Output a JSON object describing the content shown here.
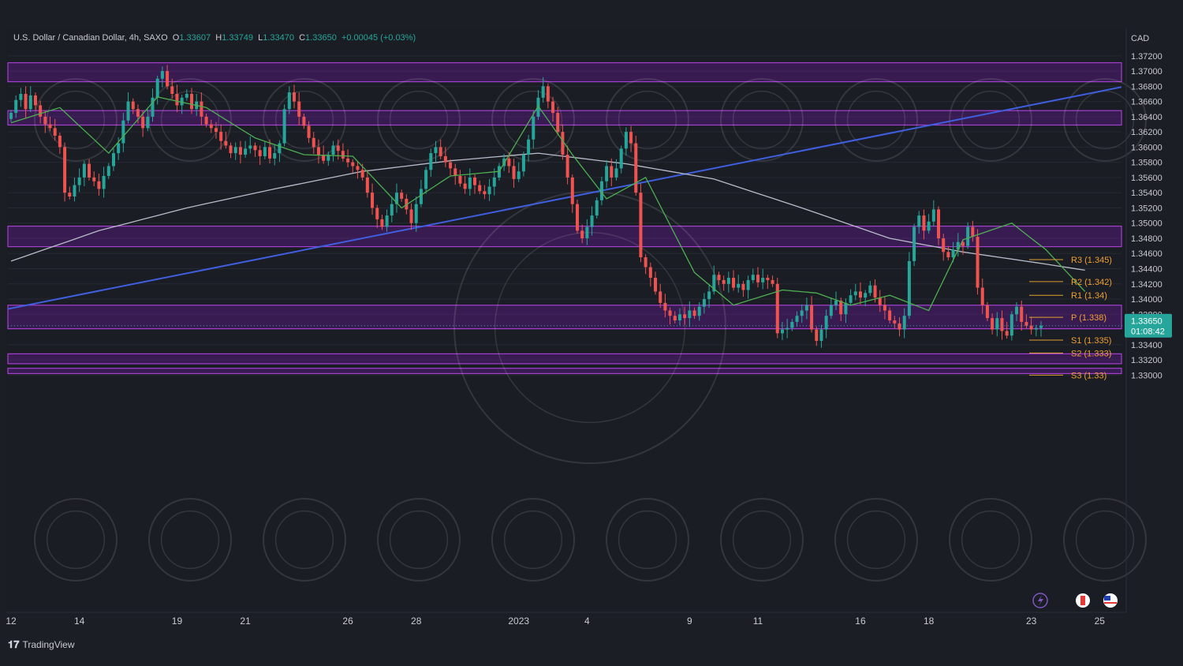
{
  "header": {
    "symbol": "U.S. Dollar / Canadian Dollar, 4h, SAXO",
    "o_label": "O",
    "o_value": "1.33607",
    "h_label": "H",
    "h_value": "1.33749",
    "l_label": "L",
    "l_value": "1.33470",
    "c_label": "C",
    "c_value": "1.33650",
    "change": "+0.00045 (+0.03%)"
  },
  "currency_label": "CAD",
  "price_badge": {
    "price": "1.33650",
    "countdown": "01:08:42"
  },
  "footer": {
    "brand": "TradingView"
  },
  "colors": {
    "background": "#1b1d25",
    "up": "#26a69a",
    "down": "#ef5350",
    "zone": "#6a1b9a",
    "trendline": "#3f5fe0",
    "pivot_line": "#e0a030",
    "pivot_text": "#f0a030",
    "ma_fast": "#4caf50",
    "ma_slow": "#b8bcc8"
  },
  "chart_data": {
    "type": "candlestick",
    "x_ticks": [
      "12",
      "14",
      "19",
      "21",
      "26",
      "28",
      "2023",
      "4",
      "9",
      "11",
      "16",
      "18",
      "23",
      "25"
    ],
    "y_ticks": [
      "1.37200",
      "1.37000",
      "1.36800",
      "1.36600",
      "1.36400",
      "1.36200",
      "1.36000",
      "1.35800",
      "1.35600",
      "1.35400",
      "1.35200",
      "1.35000",
      "1.34800",
      "1.34600",
      "1.34400",
      "1.34200",
      "1.34000",
      "1.33800",
      "1.33400",
      "1.33200",
      "1.33000"
    ],
    "ylim": [
      1.2992,
      1.3752
    ],
    "zones": [
      {
        "from": 1.3686,
        "to": 1.3711
      },
      {
        "from": 1.3629,
        "to": 1.3648
      },
      {
        "from": 1.3469,
        "to": 1.3496
      },
      {
        "from": 1.3361,
        "to": 1.3392
      },
      {
        "from": 1.3315,
        "to": 1.3328
      },
      {
        "from": 1.3302,
        "to": 1.3309
      }
    ],
    "pivots": [
      {
        "label": "R3 (1.345)",
        "value": 1.3452
      },
      {
        "label": "R2 (1.342)",
        "value": 1.3423
      },
      {
        "label": "R1 (1.34)",
        "value": 1.3405
      },
      {
        "label": "P (1.338)",
        "value": 1.3376
      },
      {
        "label": "S1 (1.335)",
        "value": 1.3346
      },
      {
        "label": "S2 (1.333)",
        "value": 1.3329
      },
      {
        "label": "S3 (1.33)",
        "value": 1.33
      }
    ],
    "trendline": {
      "from": 1.3387,
      "to": 1.3679
    },
    "last_price": 1.3365,
    "closes": [
      1.3645,
      1.3662,
      1.367,
      1.365,
      1.3668,
      1.3655,
      1.364,
      1.363,
      1.3625,
      1.3615,
      1.36,
      1.354,
      1.3535,
      1.355,
      1.356,
      1.3578,
      1.356,
      1.3555,
      1.3545,
      1.3562,
      1.3575,
      1.3592,
      1.3605,
      1.3635,
      1.366,
      1.365,
      1.364,
      1.3625,
      1.364,
      1.3665,
      1.369,
      1.37,
      1.368,
      1.367,
      1.3655,
      1.3665,
      1.367,
      1.365,
      1.366,
      1.364,
      1.363,
      1.3625,
      1.362,
      1.3608,
      1.3602,
      1.3592,
      1.36,
      1.359,
      1.3598,
      1.3602,
      1.3596,
      1.3588,
      1.36,
      1.3585,
      1.3592,
      1.3605,
      1.365,
      1.3672,
      1.366,
      1.364,
      1.3628,
      1.3612,
      1.36,
      1.359,
      1.3582,
      1.359,
      1.3602,
      1.3595,
      1.3585,
      1.358,
      1.3575,
      1.357,
      1.356,
      1.354,
      1.352,
      1.3505,
      1.3495,
      1.351,
      1.3525,
      1.354,
      1.3532,
      1.3518,
      1.35,
      1.3525,
      1.3545,
      1.357,
      1.3592,
      1.36,
      1.3588,
      1.358,
      1.3572,
      1.3562,
      1.3552,
      1.3545,
      1.356,
      1.355,
      1.3542,
      1.3538,
      1.3548,
      1.356,
      1.3575,
      1.3585,
      1.3575,
      1.3558,
      1.3568,
      1.359,
      1.361,
      1.364,
      1.3665,
      1.368,
      1.366,
      1.3645,
      1.362,
      1.359,
      1.356,
      1.3525,
      1.349,
      1.348,
      1.3495,
      1.351,
      1.353,
      1.3555,
      1.3575,
      1.356,
      1.3572,
      1.3598,
      1.362,
      1.3605,
      1.354,
      1.3455,
      1.3442,
      1.3428,
      1.341,
      1.3395,
      1.3385,
      1.3378,
      1.3372,
      1.338,
      1.3375,
      1.3385,
      1.3378,
      1.339,
      1.34,
      1.341,
      1.3432,
      1.3425,
      1.342,
      1.3428,
      1.3415,
      1.342,
      1.3412,
      1.3425,
      1.3432,
      1.3422,
      1.3428,
      1.3425,
      1.342,
      1.3355,
      1.336,
      1.3362,
      1.337,
      1.3378,
      1.3385,
      1.3392,
      1.336,
      1.3345,
      1.336,
      1.3378,
      1.3392,
      1.3398,
      1.338,
      1.3395,
      1.3405,
      1.341,
      1.3402,
      1.3408,
      1.3418,
      1.3402,
      1.3392,
      1.3385,
      1.3372,
      1.3368,
      1.336,
      1.3378,
      1.345,
      1.3495,
      1.351,
      1.349,
      1.3502,
      1.3518,
      1.348,
      1.3462,
      1.3455,
      1.3465,
      1.3475,
      1.347,
      1.3495,
      1.3482,
      1.3415,
      1.3392,
      1.3375,
      1.336,
      1.3375,
      1.3358,
      1.3352,
      1.338,
      1.339,
      1.337,
      1.3365,
      1.336,
      1.3362,
      1.3365
    ],
    "ma_fast": [
      [
        0,
        1.3632
      ],
      [
        10,
        1.3652
      ],
      [
        20,
        1.3592
      ],
      [
        30,
        1.3666
      ],
      [
        40,
        1.3652
      ],
      [
        50,
        1.3612
      ],
      [
        60,
        1.359
      ],
      [
        70,
        1.3588
      ],
      [
        80,
        1.352
      ],
      [
        90,
        1.3562
      ],
      [
        100,
        1.3568
      ],
      [
        108,
        1.3654
      ],
      [
        115,
        1.359
      ],
      [
        122,
        1.3532
      ],
      [
        130,
        1.356
      ],
      [
        140,
        1.3435
      ],
      [
        148,
        1.3392
      ],
      [
        158,
        1.3412
      ],
      [
        165,
        1.3408
      ],
      [
        172,
        1.3392
      ],
      [
        180,
        1.3405
      ],
      [
        188,
        1.3385
      ],
      [
        195,
        1.3478
      ],
      [
        205,
        1.35
      ],
      [
        212,
        1.3465
      ],
      [
        220,
        1.341
      ]
    ],
    "ma_slow": [
      [
        0,
        1.345
      ],
      [
        18,
        1.349
      ],
      [
        36,
        1.352
      ],
      [
        54,
        1.3545
      ],
      [
        72,
        1.3568
      ],
      [
        90,
        1.3582
      ],
      [
        108,
        1.3592
      ],
      [
        126,
        1.3578
      ],
      [
        144,
        1.3558
      ],
      [
        162,
        1.352
      ],
      [
        180,
        1.348
      ],
      [
        195,
        1.3462
      ],
      [
        210,
        1.3448
      ],
      [
        220,
        1.3438
      ]
    ]
  }
}
